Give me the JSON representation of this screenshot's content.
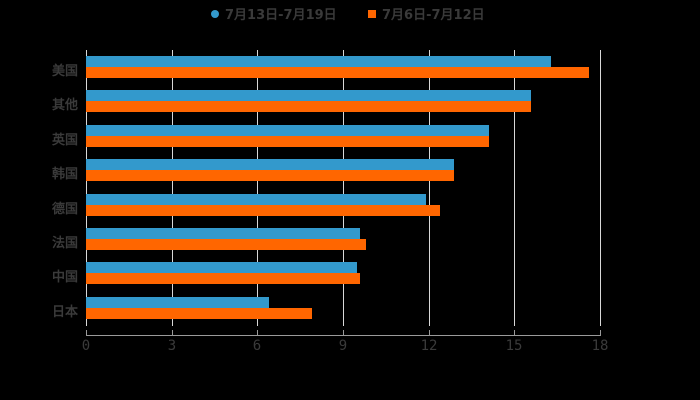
{
  "chart_data": {
    "type": "bar",
    "orientation": "horizontal",
    "title": "",
    "xlabel": "",
    "ylabel": "",
    "xlim": [
      0,
      18
    ],
    "xticks": [
      0,
      3,
      6,
      9,
      12,
      15,
      18
    ],
    "grid": true,
    "legend_position": "top",
    "categories": [
      "美国",
      "其他",
      "英国",
      "韩国",
      "德国",
      "法国",
      "中国",
      "日本"
    ],
    "series": [
      {
        "name": "7月13日-7月19日",
        "color": "#3399cc",
        "values": [
          16.3,
          15.6,
          14.1,
          12.9,
          11.9,
          9.6,
          9.5,
          6.4
        ]
      },
      {
        "name": "7月6日-7月12日",
        "color": "#ff6600",
        "values": [
          17.6,
          15.6,
          14.1,
          12.9,
          12.4,
          9.8,
          9.6,
          7.9
        ]
      }
    ]
  },
  "legend": [
    {
      "label": "7月13日-7月19日",
      "color": "#3399cc",
      "shape": "circle"
    },
    {
      "label": "7月6日-7月12日",
      "color": "#ff6600",
      "shape": "square"
    }
  ],
  "axis": {
    "tick_labels": [
      "0",
      "3",
      "6",
      "9",
      "12",
      "15",
      "18"
    ]
  }
}
